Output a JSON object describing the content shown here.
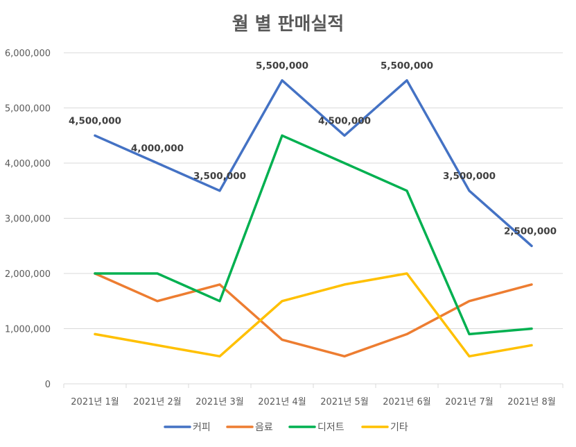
{
  "chart_data": {
    "type": "line",
    "title": "월 별 판매실적",
    "categories": [
      "2021년 1월",
      "2021년 2월",
      "2021년 3월",
      "2021년 4월",
      "2021년 5월",
      "2021년 6월",
      "2021년 7월",
      "2021년 8월"
    ],
    "series": [
      {
        "name": "커피",
        "color": "#4472C4",
        "values": [
          4500000,
          4000000,
          3500000,
          5500000,
          4500000,
          5500000,
          3500000,
          2500000
        ]
      },
      {
        "name": "음료",
        "color": "#ED7D31",
        "values": [
          2000000,
          1500000,
          1800000,
          800000,
          500000,
          900000,
          1500000,
          1800000
        ]
      },
      {
        "name": "디저트",
        "color": "#00B050",
        "values": [
          2000000,
          2000000,
          1500000,
          4500000,
          4000000,
          3500000,
          900000,
          1000000
        ]
      },
      {
        "name": "기타",
        "color": "#FFC000",
        "values": [
          900000,
          700000,
          500000,
          1500000,
          1800000,
          2000000,
          500000,
          700000
        ]
      }
    ],
    "data_labels": {
      "series": "커피",
      "labels": [
        "4,500,000",
        "4,000,000",
        "3,500,000",
        "5,500,000",
        "4,500,000",
        "5,500,000",
        "3,500,000",
        "2,500,000"
      ]
    },
    "y_ticks": [
      "0",
      "1,000,000",
      "2,000,000",
      "3,000,000",
      "4,000,000",
      "5,000,000",
      "6,000,000"
    ],
    "ylim": [
      0,
      6000000
    ],
    "grid": true,
    "legend": "bottom"
  }
}
